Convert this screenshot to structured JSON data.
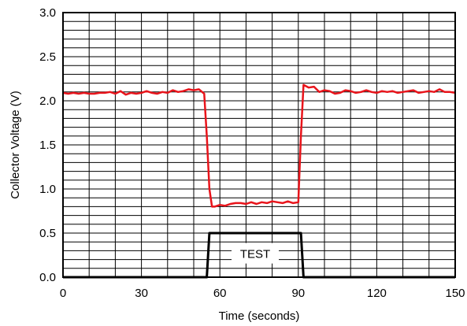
{
  "chart_data": {
    "type": "line",
    "title": "",
    "xlabel": "Time (seconds)",
    "ylabel": "Collector Voltage (V)",
    "xlim": [
      0,
      150
    ],
    "ylim": [
      0,
      3.0
    ],
    "x_ticks": [
      {
        "value": 0,
        "label": "0"
      },
      {
        "value": 30,
        "label": "30"
      },
      {
        "value": 60,
        "label": "60"
      },
      {
        "value": 90,
        "label": "90"
      },
      {
        "value": 120,
        "label": "120"
      },
      {
        "value": 150,
        "label": "150"
      }
    ],
    "y_ticks": [
      {
        "value": 0.0,
        "label": "0.0"
      },
      {
        "value": 0.5,
        "label": "0.5"
      },
      {
        "value": 1.0,
        "label": "1.0"
      },
      {
        "value": 1.5,
        "label": "1.5"
      },
      {
        "value": 2.0,
        "label": "2.0"
      },
      {
        "value": 2.5,
        "label": "2.5"
      },
      {
        "value": 3.0,
        "label": "3.0"
      }
    ],
    "grid": true,
    "grid_x_step": 10,
    "grid_y_step": 0.1,
    "series": [
      {
        "color": "#e8141b",
        "x": [
          0,
          2,
          4,
          6,
          8,
          10,
          12,
          14,
          16,
          18,
          20,
          22,
          24,
          26,
          28,
          30,
          32,
          34,
          36,
          38,
          40,
          42,
          44,
          46,
          48,
          50,
          52,
          54,
          55,
          56,
          57,
          58,
          60,
          62,
          64,
          66,
          68,
          70,
          72,
          74,
          76,
          78,
          80,
          82,
          84,
          86,
          88,
          90,
          91,
          92,
          94,
          96,
          98,
          100,
          102,
          104,
          106,
          108,
          110,
          112,
          114,
          116,
          118,
          120,
          122,
          124,
          126,
          128,
          130,
          132,
          134,
          136,
          138,
          140,
          142,
          144,
          146,
          148,
          150
        ],
        "y": [
          2.09,
          2.08,
          2.09,
          2.08,
          2.09,
          2.08,
          2.08,
          2.09,
          2.09,
          2.1,
          2.08,
          2.11,
          2.07,
          2.09,
          2.08,
          2.09,
          2.11,
          2.09,
          2.08,
          2.1,
          2.09,
          2.12,
          2.1,
          2.11,
          2.13,
          2.12,
          2.13,
          2.08,
          1.6,
          1.0,
          0.8,
          0.8,
          0.82,
          0.81,
          0.83,
          0.84,
          0.84,
          0.83,
          0.85,
          0.83,
          0.85,
          0.84,
          0.86,
          0.85,
          0.84,
          0.86,
          0.84,
          0.85,
          1.6,
          2.18,
          2.15,
          2.16,
          2.1,
          2.12,
          2.11,
          2.08,
          2.09,
          2.12,
          2.11,
          2.09,
          2.1,
          2.12,
          2.1,
          2.09,
          2.11,
          2.1,
          2.11,
          2.09,
          2.1,
          2.11,
          2.12,
          2.09,
          2.1,
          2.11,
          2.1,
          2.13,
          2.1,
          2.1,
          2.09
        ]
      },
      {
        "color": "#000000",
        "x": [
          0,
          55,
          56,
          91,
          92,
          150
        ],
        "y": [
          0,
          0,
          0.5,
          0.5,
          0,
          0
        ]
      }
    ],
    "annotations": [
      {
        "text": "TEST",
        "x": 73.5,
        "y": 0.28
      }
    ]
  }
}
